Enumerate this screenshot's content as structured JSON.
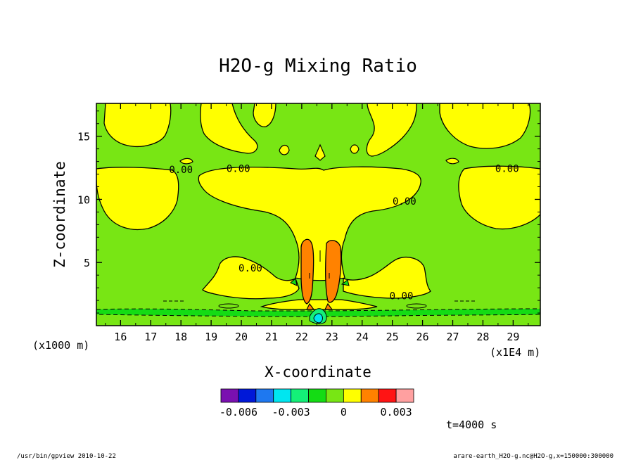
{
  "chart_data": {
    "type": "contour",
    "title": "H2O-g Mixing Ratio",
    "xlabel": "X-coordinate",
    "ylabel": "Z-coordinate",
    "x_unit_note": "(x1E4 m)",
    "y_unit_note": "(x1000 m)",
    "xlim": [
      15.2,
      29.9
    ],
    "ylim": [
      0,
      17.6
    ],
    "x_ticks": [
      "16",
      "17",
      "18",
      "19",
      "20",
      "21",
      "22",
      "23",
      "24",
      "25",
      "26",
      "27",
      "28",
      "29"
    ],
    "y_ticks": [
      "5",
      "10",
      "15"
    ],
    "x_tick_values": [
      16,
      17,
      18,
      19,
      20,
      21,
      22,
      23,
      24,
      25,
      26,
      27,
      28,
      29
    ],
    "y_tick_values": [
      5,
      10,
      15
    ],
    "contour_labels": [
      {
        "text": "0.00",
        "x": 18.0,
        "y": 12.3
      },
      {
        "text": "0.00",
        "x": 19.9,
        "y": 12.4
      },
      {
        "text": "0.00",
        "x": 28.8,
        "y": 12.4
      },
      {
        "text": "0.00",
        "x": 25.4,
        "y": 9.8
      },
      {
        "text": "0.00",
        "x": 20.3,
        "y": 4.5
      },
      {
        "text": "0.00",
        "x": 25.3,
        "y": 2.3
      }
    ],
    "colorbar": {
      "colors": [
        "#7a10b0",
        "#0018d8",
        "#1e78f0",
        "#00e6f0",
        "#14f078",
        "#14dc14",
        "#78e614",
        "#ffff00",
        "#ff8200",
        "#ff1414",
        "#ffa0a0"
      ],
      "tick_labels": [
        "-0.006",
        "-0.003",
        "0",
        "0.003"
      ],
      "tick_values": [
        -0.006,
        -0.003,
        0,
        0.003
      ]
    },
    "time_label": "t=4000 s",
    "colors": {
      "background_field": "#78e614",
      "positive_field": "#ffff00",
      "strong_positive": "#ff8200",
      "negative_field": "#14dc14"
    }
  },
  "footer": {
    "left": "/usr/bin/gpview  2010-10-22",
    "right": "arare-earth_H2O-g.nc@H2O-g,x=150000:300000"
  }
}
